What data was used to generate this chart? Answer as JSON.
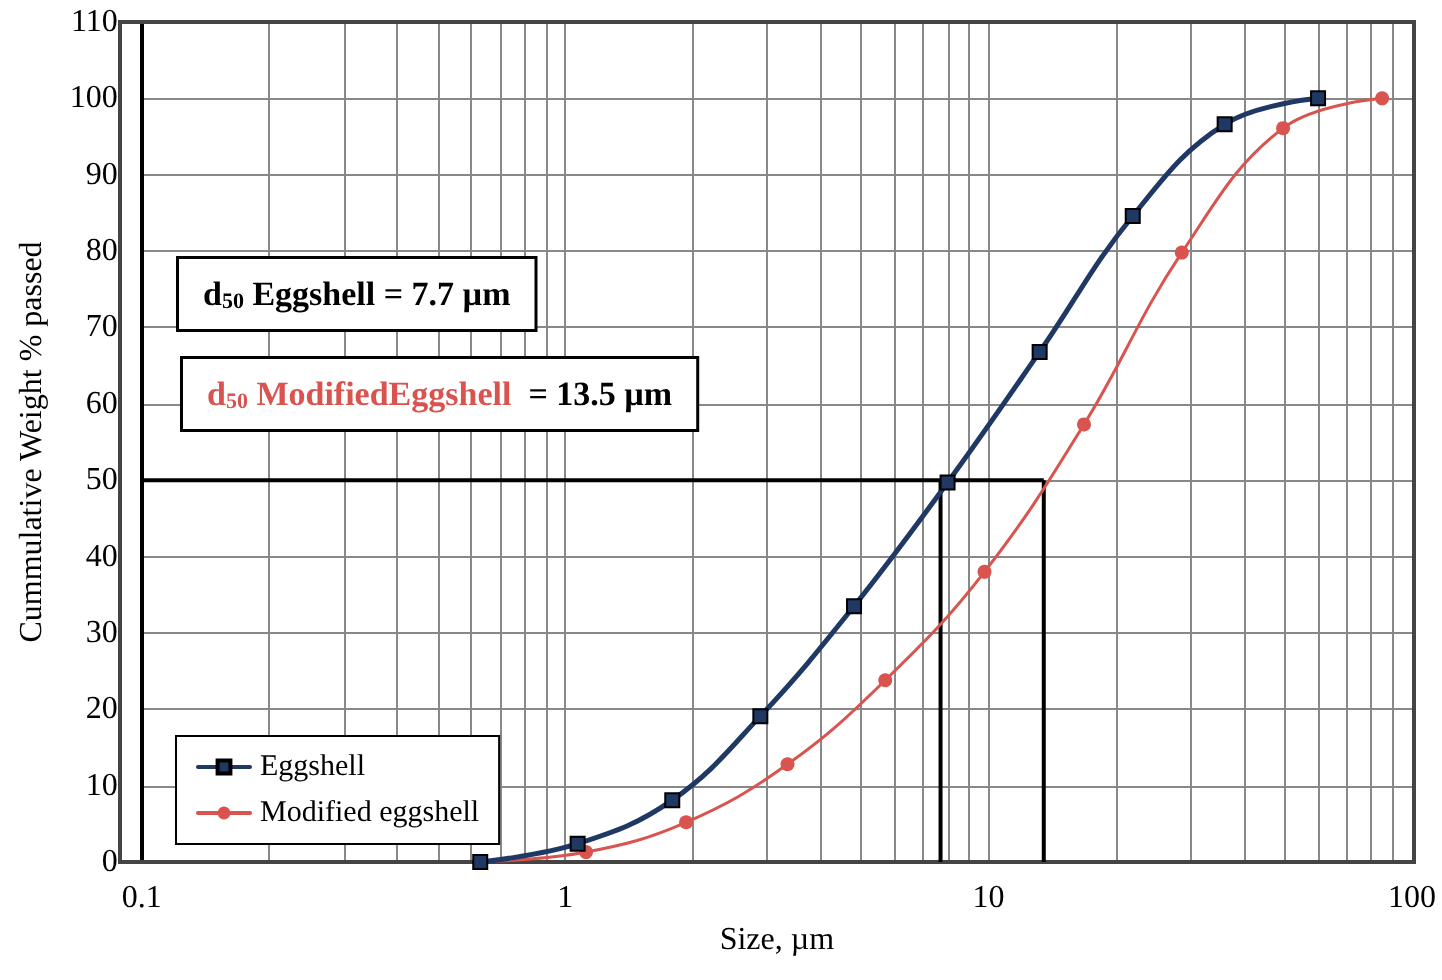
{
  "chart_data": {
    "type": "line",
    "xlabel": "Size, µm",
    "ylabel": "Cummulative Weight % passed",
    "log": "x",
    "xlim": [
      0.1,
      100
    ],
    "xticks": [
      0.1,
      1,
      10,
      100
    ],
    "ylim": [
      0,
      110
    ],
    "yticks": [
      0,
      10,
      20,
      30,
      40,
      50,
      60,
      70,
      80,
      90,
      100,
      110
    ],
    "grid": true,
    "legend": "bottom left",
    "line_style": "solid",
    "series": [
      {
        "name": "Eggshell",
        "color": "#1f3864",
        "marker": "square",
        "x": [
          0.63,
          1.07,
          1.79,
          2.89,
          4.81,
          8.0,
          13.2,
          21.9,
          36.1,
          60
        ],
        "values": [
          0,
          2.4,
          8.1,
          19.1,
          33.5,
          49.7,
          66.8,
          84.6,
          96.6,
          100
        ]
      },
      {
        "name": "Modified eggshell",
        "color": "#d9534f",
        "marker": "circle",
        "x": [
          0.63,
          1.12,
          1.93,
          3.35,
          5.7,
          9.78,
          16.8,
          28.6,
          49.6,
          85
        ],
        "values": [
          0,
          1.3,
          5.2,
          12.8,
          23.8,
          38,
          57.3,
          79.8,
          96.1,
          100
        ]
      }
    ],
    "ref_lines": [
      {
        "axis": "y",
        "value": 50,
        "color": "#000000"
      },
      {
        "axis": "x",
        "value": 7.7,
        "color": "#000000"
      },
      {
        "axis": "x",
        "value": 13.5,
        "color": "#000000"
      }
    ],
    "annotations": [
      "d$_{50}$ Eggshell = 7.7 µm",
      "d$_{50}$ ModifiedEggshell  = 13.5 µm"
    ]
  }
}
